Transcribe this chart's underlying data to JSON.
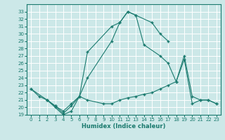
{
  "title": "",
  "xlabel": "Humidex (Indice chaleur)",
  "bg_color": "#cce8e8",
  "grid_color": "#ffffff",
  "line_color": "#1a7a6e",
  "xlim": [
    -0.5,
    23.5
  ],
  "ylim": [
    19,
    34
  ],
  "xticks": [
    0,
    1,
    2,
    3,
    4,
    5,
    6,
    7,
    8,
    9,
    10,
    11,
    12,
    13,
    14,
    15,
    16,
    17,
    18,
    19,
    20,
    21,
    22,
    23
  ],
  "yticks": [
    19,
    20,
    21,
    22,
    23,
    24,
    25,
    26,
    27,
    28,
    29,
    30,
    31,
    32,
    33
  ],
  "line1": {
    "x": [
      0,
      1,
      2,
      3,
      4,
      5,
      6,
      7,
      10,
      11,
      12,
      13,
      15,
      16,
      17
    ],
    "y": [
      22.5,
      21.5,
      21.0,
      20.0,
      19.0,
      19.5,
      21.5,
      24.0,
      29.0,
      31.5,
      33.0,
      32.5,
      31.5,
      30.0,
      29.0
    ]
  },
  "line2": {
    "x": [
      2,
      3,
      4,
      5,
      6,
      7,
      10,
      11,
      12,
      13,
      14,
      16,
      17,
      18,
      19,
      20,
      21,
      22,
      23
    ],
    "y": [
      21.0,
      20.2,
      19.2,
      20.2,
      21.5,
      27.5,
      31.0,
      31.5,
      33.0,
      32.5,
      28.5,
      27.0,
      26.0,
      23.5,
      27.0,
      21.5,
      21.0,
      21.0,
      20.5
    ]
  },
  "line3": {
    "x": [
      0,
      2,
      3,
      4,
      5,
      6,
      7,
      9,
      10,
      11,
      12,
      13,
      14,
      15,
      16,
      17,
      18,
      19,
      20,
      21,
      22,
      23
    ],
    "y": [
      22.5,
      21.0,
      20.2,
      19.5,
      20.5,
      21.5,
      21.0,
      20.5,
      20.5,
      21.0,
      21.3,
      21.5,
      21.8,
      22.0,
      22.5,
      23.0,
      23.5,
      26.5,
      20.5,
      21.0,
      21.0,
      20.5
    ]
  }
}
